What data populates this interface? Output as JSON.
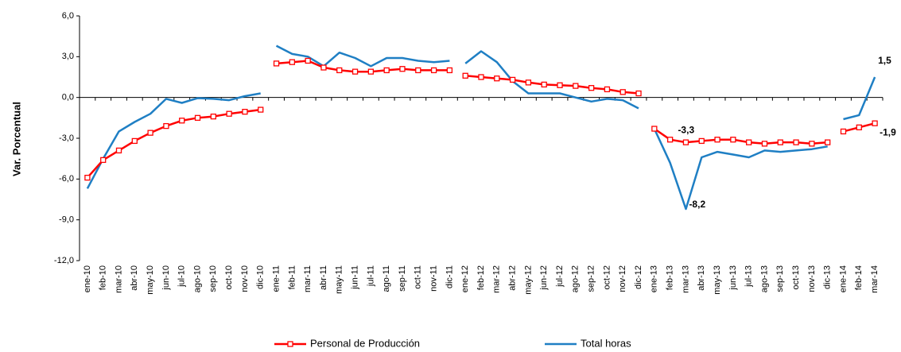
{
  "chart_data": {
    "type": "line",
    "y_label": "Var. Porcentual",
    "categories": [
      "ene-10",
      "feb-10",
      "mar-10",
      "abr-10",
      "may-10",
      "jun-10",
      "jul-10",
      "ago-10",
      "sep-10",
      "oct-10",
      "nov-10",
      "dic-10",
      "ene-11",
      "feb-11",
      "mar-11",
      "abr-11",
      "may-11",
      "jun-11",
      "jul-11",
      "ago-11",
      "sep-11",
      "oct-11",
      "nov-11",
      "dic-11",
      "ene-12",
      "feb-12",
      "mar-12",
      "abr-12",
      "may-12",
      "jun-12",
      "jul-12",
      "ago-12",
      "sep-12",
      "oct-12",
      "nov-12",
      "dic-12",
      "ene-13",
      "feb-13",
      "mar-13",
      "abr-13",
      "may-13",
      "jun-13",
      "jul-13",
      "ago-13",
      "sep-13",
      "oct-13",
      "nov-13",
      "dic-13",
      "ene-14",
      "feb-14",
      "mar-14"
    ],
    "series": [
      {
        "name": "Personal de Producción",
        "color": "#ff0000",
        "marker": "square",
        "values": [
          -5.9,
          -4.6,
          -3.9,
          -3.2,
          -2.6,
          -2.1,
          -1.7,
          -1.5,
          -1.4,
          -1.2,
          -1.05,
          -0.9,
          2.5,
          2.6,
          2.7,
          2.2,
          2.0,
          1.9,
          1.9,
          2.0,
          2.1,
          2.0,
          2.0,
          2.0,
          1.6,
          1.5,
          1.4,
          1.3,
          1.1,
          0.95,
          0.9,
          0.85,
          0.7,
          0.6,
          0.4,
          0.3,
          -2.3,
          -3.1,
          -3.3,
          -3.2,
          -3.1,
          -3.1,
          -3.3,
          -3.4,
          -3.3,
          -3.3,
          -3.4,
          -3.3,
          -2.5,
          -2.2,
          -1.9
        ],
        "value_labels": [
          null,
          null,
          null,
          null,
          null,
          null,
          null,
          null,
          null,
          null,
          null,
          null,
          null,
          null,
          null,
          null,
          null,
          null,
          null,
          null,
          null,
          null,
          null,
          null,
          null,
          null,
          null,
          null,
          null,
          null,
          null,
          null,
          null,
          null,
          null,
          null,
          null,
          null,
          "-3,3",
          null,
          null,
          null,
          null,
          null,
          null,
          null,
          null,
          null,
          null,
          null,
          "-1,9"
        ]
      },
      {
        "name": "Total horas",
        "color": "#1f7fc4",
        "marker": "none",
        "label_color": "#2a4f8f",
        "values": [
          -6.7,
          -4.5,
          -2.5,
          -1.8,
          -1.2,
          -0.1,
          -0.4,
          -0.05,
          -0.1,
          -0.2,
          0.1,
          0.3,
          3.8,
          3.2,
          3.0,
          2.3,
          3.3,
          2.9,
          2.3,
          2.9,
          2.9,
          2.7,
          2.6,
          2.7,
          2.5,
          3.4,
          2.6,
          1.2,
          0.3,
          0.3,
          0.3,
          0.0,
          -0.3,
          -0.1,
          -0.2,
          -0.8,
          -2.3,
          -4.8,
          -8.2,
          -4.4,
          -4.0,
          -4.2,
          -4.4,
          -3.9,
          -4.0,
          -3.9,
          -3.8,
          -3.6,
          -1.6,
          -1.3,
          1.5
        ],
        "value_labels": [
          null,
          null,
          null,
          null,
          null,
          null,
          null,
          null,
          null,
          null,
          null,
          null,
          null,
          null,
          null,
          null,
          null,
          null,
          null,
          null,
          null,
          null,
          null,
          null,
          null,
          null,
          null,
          null,
          null,
          null,
          null,
          null,
          null,
          null,
          null,
          null,
          null,
          null,
          "-8,2",
          null,
          null,
          null,
          null,
          null,
          null,
          null,
          null,
          null,
          null,
          null,
          "1,5"
        ]
      }
    ],
    "ylim": [
      -12,
      6
    ],
    "yticks": [
      {
        "value": -12,
        "label": "-12,0"
      },
      {
        "value": -9,
        "label": "-9,0"
      },
      {
        "value": -6,
        "label": "-6,0"
      },
      {
        "value": -3,
        "label": "-3,0"
      },
      {
        "value": 0,
        "label": "0,0"
      },
      {
        "value": 3,
        "label": "3,0"
      },
      {
        "value": 6,
        "label": "6,0"
      }
    ],
    "grid": false,
    "legend": "bottom"
  }
}
